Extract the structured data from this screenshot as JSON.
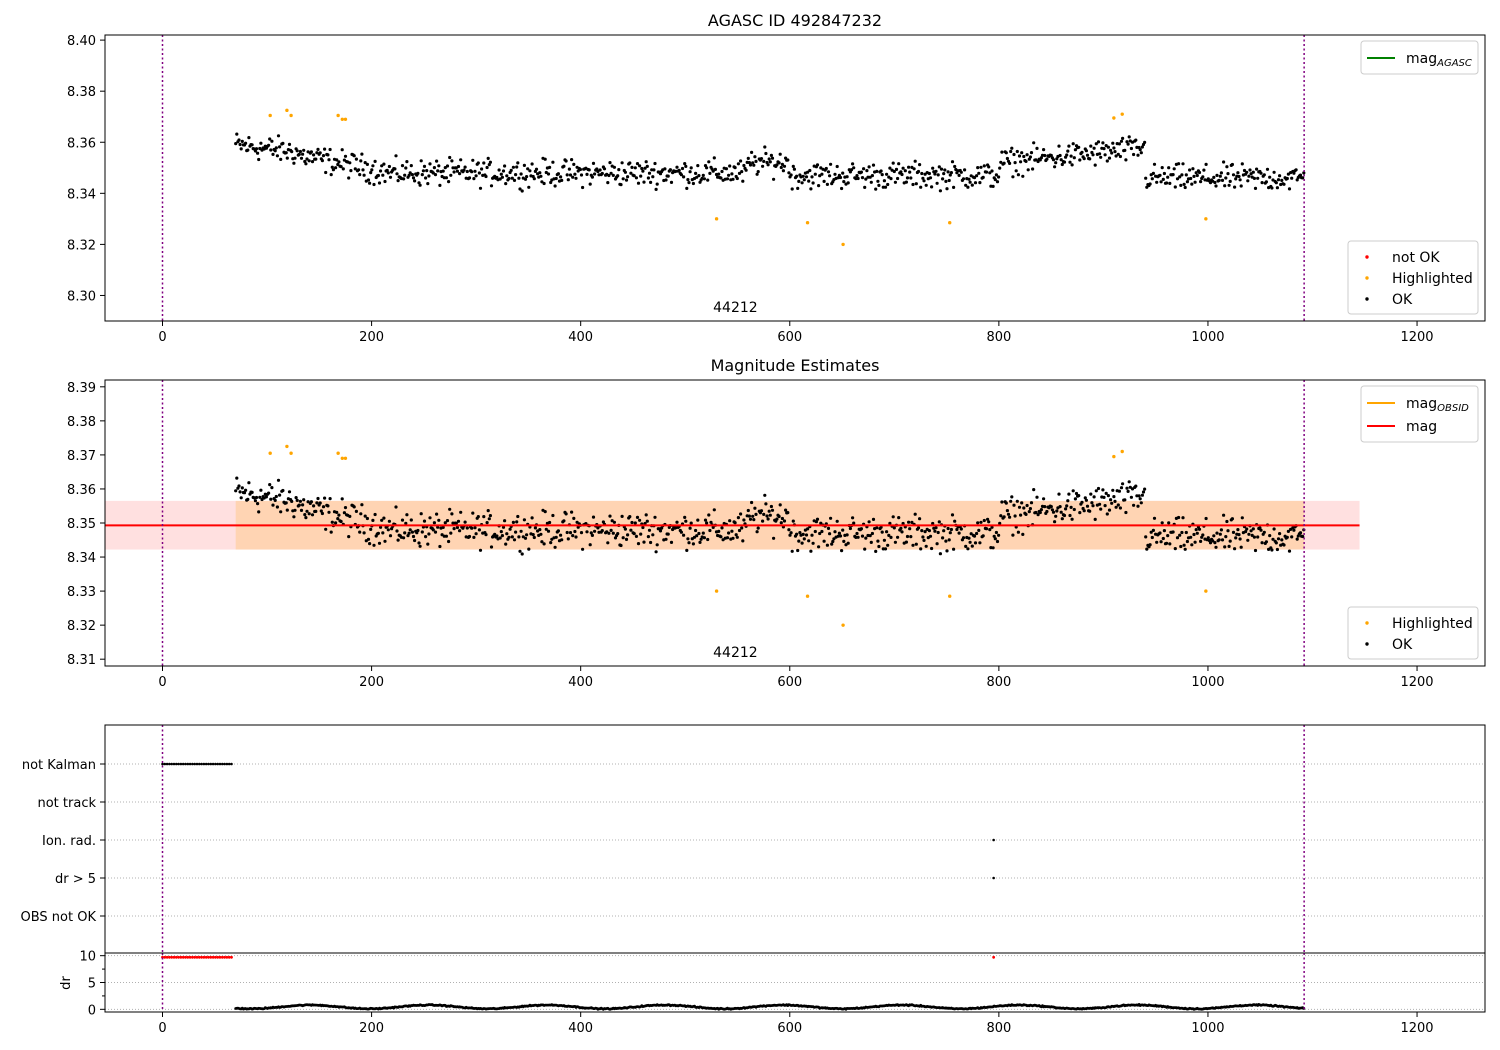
{
  "chart_data": [
    {
      "type": "scatter",
      "title": "AGASC ID 492847232",
      "obsid_label": "44212",
      "xlim": [
        -55,
        1265
      ],
      "ylim": [
        8.29,
        8.402
      ],
      "x_ticks": [
        0,
        200,
        400,
        600,
        800,
        1000,
        1200
      ],
      "y_ticks": [
        8.3,
        8.32,
        8.34,
        8.36,
        8.38,
        8.4
      ],
      "vlines": [
        0,
        1092
      ],
      "legend_lines": [
        {
          "label": "mag",
          "sub": "AGASC",
          "color": "#008000"
        }
      ],
      "legend_markers": [
        {
          "label": "not OK",
          "color": "#ff0000"
        },
        {
          "label": "Highlighted",
          "color": "#ffa500"
        },
        {
          "label": "OK",
          "color": "#000000"
        }
      ],
      "series": [
        {
          "name": "OK",
          "color": "#000000",
          "description": "~1000 per-frame magnitude estimates, t = 70 to 1092 s, mag = 8.331 to 8.368 scattered around 8.349"
        },
        {
          "name": "Highlighted",
          "color": "#ffa500",
          "points": [
            [
              103,
              8.3705
            ],
            [
              119,
              8.3725
            ],
            [
              123,
              8.3705
            ],
            [
              168,
              8.3705
            ],
            [
              172,
              8.369
            ],
            [
              175,
              8.369
            ],
            [
              530,
              8.33
            ],
            [
              617,
              8.3285
            ],
            [
              651,
              8.32
            ],
            [
              753,
              8.3285
            ],
            [
              910,
              8.3695
            ],
            [
              918,
              8.371
            ],
            [
              998,
              8.33
            ]
          ]
        }
      ]
    },
    {
      "type": "scatter",
      "title": "Magnitude Estimates",
      "obsid_label": "44212",
      "xlim": [
        -55,
        1265
      ],
      "ylim": [
        8.308,
        8.392
      ],
      "x_ticks": [
        0,
        200,
        400,
        600,
        800,
        1000,
        1200
      ],
      "y_ticks": [
        8.31,
        8.32,
        8.33,
        8.34,
        8.35,
        8.36,
        8.37,
        8.38,
        8.39
      ],
      "vlines": [
        0,
        1092
      ],
      "mag_line": 8.3493,
      "mag_band": [
        8.3422,
        8.3565
      ],
      "mag_band_xrange": [
        -55,
        1145
      ],
      "obsid_band": [
        8.3422,
        8.3565
      ],
      "obsid_band_xrange": [
        70,
        1092
      ],
      "legend_lines": [
        {
          "label": "mag",
          "sub": "OBSID",
          "color": "#ffa500"
        },
        {
          "label": "mag",
          "sub": "",
          "color": "#ff0000"
        }
      ],
      "legend_markers": [
        {
          "label": "Highlighted",
          "color": "#ffa500"
        },
        {
          "label": "OK",
          "color": "#000000"
        }
      ],
      "series": [
        {
          "name": "OK",
          "color": "#000000",
          "description": "same per-frame magnitude estimates as the top panel"
        },
        {
          "name": "Highlighted",
          "color": "#ffa500",
          "points": [
            [
              103,
              8.3705
            ],
            [
              119,
              8.3725
            ],
            [
              123,
              8.3705
            ],
            [
              168,
              8.3705
            ],
            [
              172,
              8.369
            ],
            [
              175,
              8.369
            ],
            [
              530,
              8.33
            ],
            [
              617,
              8.3285
            ],
            [
              651,
              8.32
            ],
            [
              753,
              8.3285
            ],
            [
              910,
              8.3695
            ],
            [
              918,
              8.371
            ],
            [
              998,
              8.33
            ]
          ]
        }
      ]
    },
    {
      "type": "scatter",
      "xlim": [
        -55,
        1265
      ],
      "categories": [
        "not Kalman",
        "not track",
        "Ion. rad.",
        "dr > 5",
        "OBS not OK"
      ],
      "vlines": [
        0,
        1092
      ],
      "flag_points": [
        {
          "category": "not Kalman",
          "x_from": 0,
          "x_to": 68,
          "step": 2.2
        },
        {
          "category": "Ion. rad.",
          "x": 795
        },
        {
          "category": "dr > 5",
          "x": 795
        }
      ]
    },
    {
      "type": "scatter",
      "ylabel": "dr",
      "xlim": [
        -55,
        1265
      ],
      "ylim": [
        -0.5,
        10.5
      ],
      "y_ticks": [
        0,
        5,
        10
      ],
      "x_ticks": [
        0,
        200,
        400,
        600,
        800,
        1000,
        1200
      ],
      "vlines": [
        0,
        1092
      ],
      "series": [
        {
          "name": "dr capped",
          "color": "#ff0000",
          "x_from": 0,
          "x_to": 68,
          "step": 2.2,
          "value": 9.7
        },
        {
          "name": "dr capped",
          "color": "#ff0000",
          "points": [
            [
              795,
              9.7
            ]
          ]
        },
        {
          "name": "dr",
          "color": "#000000",
          "description": "per-frame dr between 0 and 1.5, t = 70 to 1092 s"
        }
      ]
    }
  ]
}
